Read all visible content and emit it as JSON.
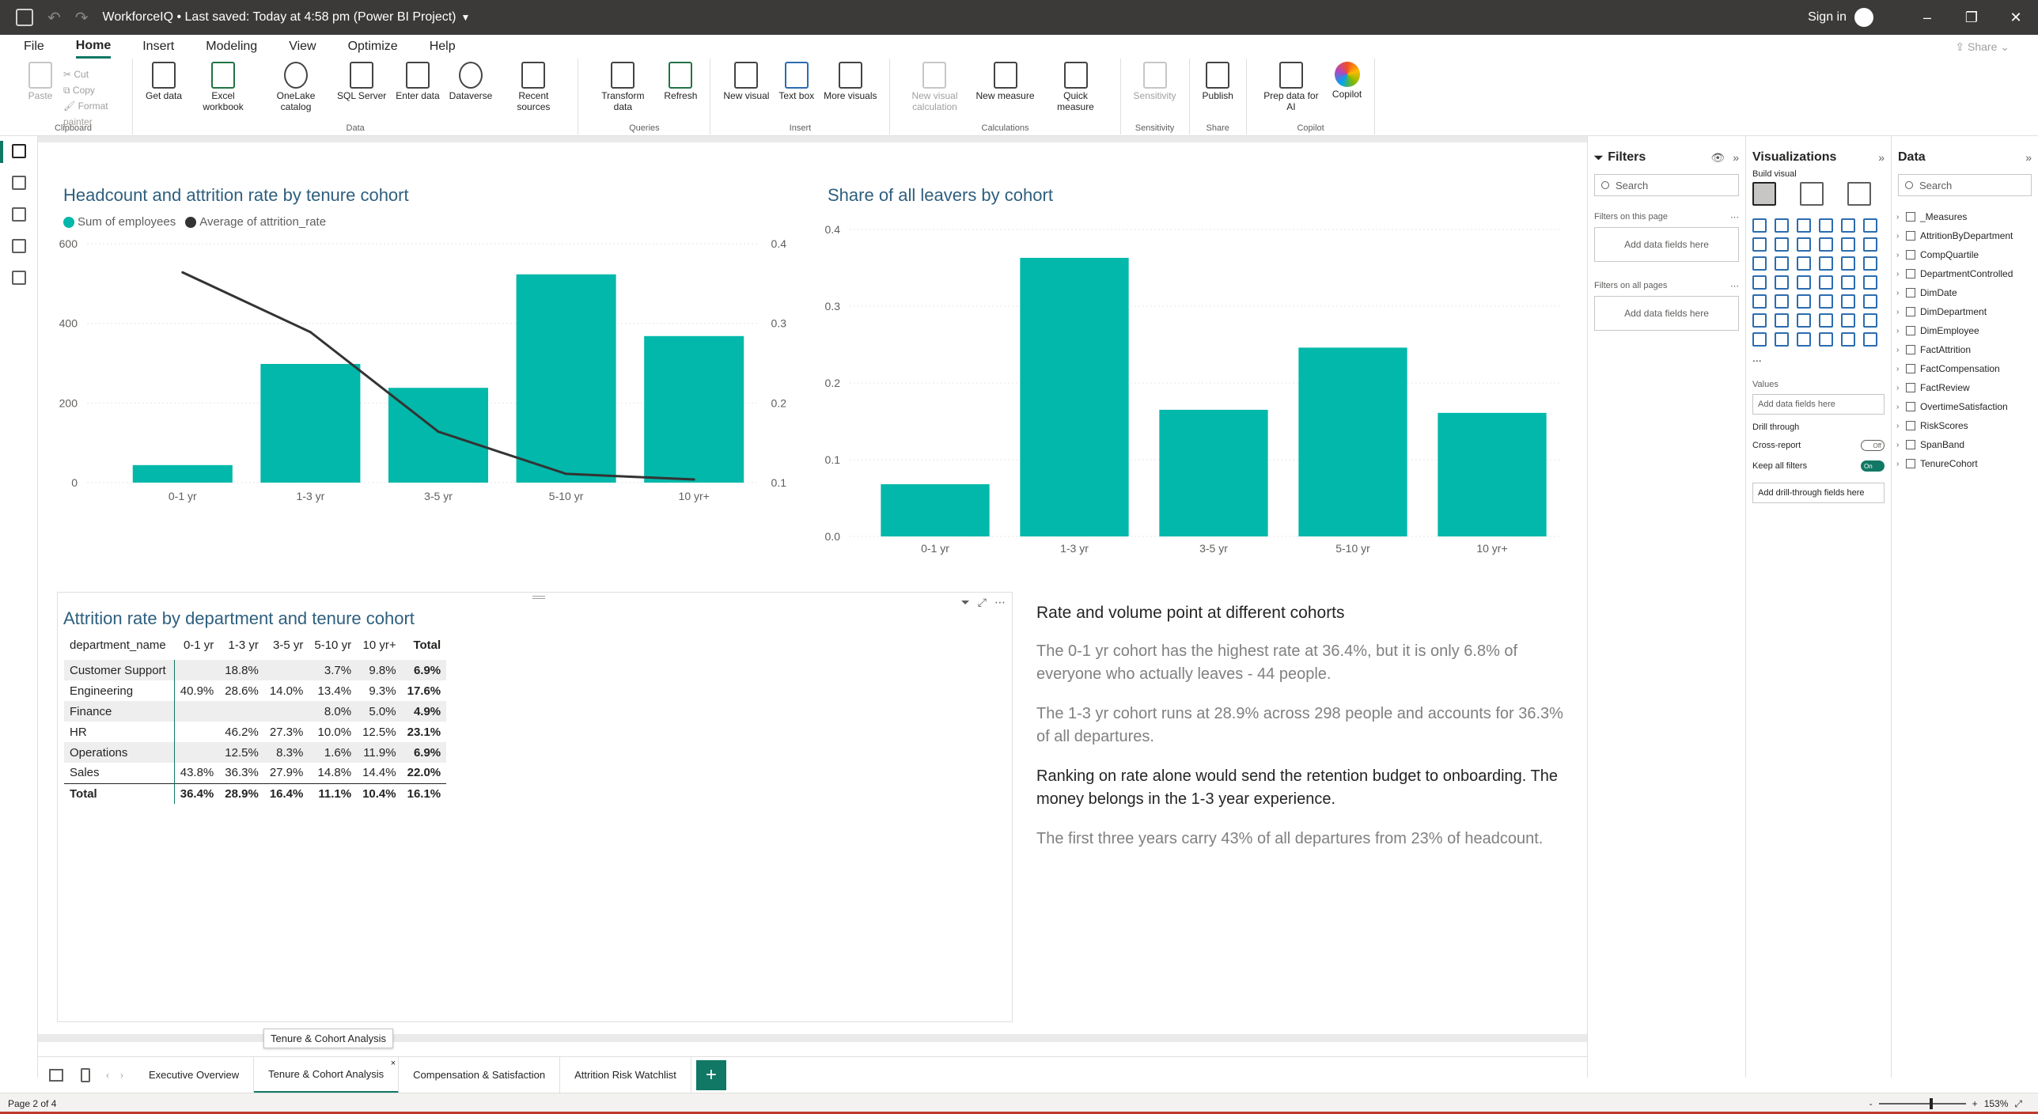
{
  "titlebar": {
    "title": "WorkforceIQ • Last saved: Today at 4:58 pm (Power BI Project)",
    "signin": "Sign in"
  },
  "menu": {
    "items": [
      "File",
      "Home",
      "Insert",
      "Modeling",
      "View",
      "Optimize",
      "Help"
    ],
    "active": "Home",
    "share": "Share"
  },
  "ribbon": {
    "clipboard": {
      "paste": "Paste",
      "cut": "Cut",
      "copy": "Copy",
      "format_painter": "Format painter",
      "group": "Clipboard"
    },
    "data": {
      "get_data": "Get data",
      "excel": "Excel workbook",
      "onelake": "OneLake catalog",
      "sql": "SQL Server",
      "enter": "Enter data",
      "dataverse": "Dataverse",
      "recent": "Recent sources",
      "group": "Data"
    },
    "queries": {
      "transform": "Transform data",
      "refresh": "Refresh",
      "group": "Queries"
    },
    "insert": {
      "new_visual": "New visual",
      "text_box": "Text box",
      "more_visuals": "More visuals",
      "group": "Insert"
    },
    "calculations": {
      "new_visual_calc": "New visual calculation",
      "new_measure": "New measure",
      "quick_measure": "Quick measure",
      "group": "Calculations"
    },
    "sensitivity": {
      "label": "Sensitivity",
      "group": "Sensitivity"
    },
    "share": {
      "publish": "Publish",
      "group": "Share"
    },
    "copilot": {
      "prep": "Prep data for AI",
      "copilot": "Copilot",
      "group": "Copilot"
    }
  },
  "combo_chart": {
    "title": "Headcount and attrition rate by tenure cohort",
    "legend": [
      "Sum of employees",
      "Average of attrition_rate"
    ],
    "colors": {
      "bar": "#01b8aa",
      "line": "#333333"
    }
  },
  "leavers_chart": {
    "title": "Share of all leavers by cohort",
    "color": "#01b8aa"
  },
  "chart_data": [
    {
      "type": "bar",
      "categories": [
        "0-1 yr",
        "1-3 yr",
        "3-5 yr",
        "5-10 yr",
        "10 yr+"
      ],
      "series": [
        {
          "name": "Sum of employees",
          "type": "bar",
          "axis": "left",
          "values": [
            44,
            298,
            238,
            523,
            368
          ]
        },
        {
          "name": "Average of attrition_rate",
          "type": "line",
          "axis": "right",
          "values": [
            0.364,
            0.289,
            0.164,
            0.111,
            0.104
          ]
        }
      ],
      "ylim_left": [
        0,
        600
      ],
      "yticks_left": [
        "0",
        "200",
        "400",
        "600"
      ],
      "ylim_right": [
        0.1,
        0.4
      ],
      "yticks_right": [
        "0.1",
        "0.2",
        "0.3",
        "0.4"
      ],
      "legend_position": "top-left",
      "grid": true
    },
    {
      "type": "bar",
      "categories": [
        "0-1 yr",
        "1-3 yr",
        "3-5 yr",
        "5-10 yr",
        "10 yr+"
      ],
      "values": [
        0.068,
        0.363,
        0.165,
        0.246,
        0.161
      ],
      "ylim": [
        0,
        0.4
      ],
      "yticks": [
        "0.0",
        "0.1",
        "0.2",
        "0.3",
        "0.4"
      ],
      "grid": true
    }
  ],
  "matrix": {
    "title": "Attrition rate by department and tenure cohort",
    "headers": [
      "department_name",
      "0-1 yr",
      "1-3 yr",
      "3-5 yr",
      "5-10 yr",
      "10 yr+",
      "Total"
    ],
    "rows": [
      [
        "Customer Support",
        "",
        "18.8%",
        "",
        "3.7%",
        "9.8%",
        "6.9%"
      ],
      [
        "Engineering",
        "40.9%",
        "28.6%",
        "14.0%",
        "13.4%",
        "9.3%",
        "17.6%"
      ],
      [
        "Finance",
        "",
        "",
        "",
        "8.0%",
        "5.0%",
        "4.9%"
      ],
      [
        "HR",
        "",
        "46.2%",
        "27.3%",
        "10.0%",
        "12.5%",
        "23.1%"
      ],
      [
        "Operations",
        "",
        "12.5%",
        "8.3%",
        "1.6%",
        "11.9%",
        "6.9%"
      ],
      [
        "Sales",
        "43.8%",
        "36.3%",
        "27.9%",
        "14.8%",
        "14.4%",
        "22.0%"
      ]
    ],
    "total": [
      "Total",
      "36.4%",
      "28.9%",
      "16.4%",
      "11.1%",
      "10.4%",
      "16.1%"
    ]
  },
  "textbox": {
    "heading": "Rate and volume point at different cohorts",
    "p1": "The 0-1 yr cohort has the highest rate at 36.4%, but it is only 6.8% of everyone who actually leaves - 44 people.",
    "p2": "The 1-3 yr cohort runs at 28.9% across 298 people and accounts for 36.3% of all departures.",
    "p3": "Ranking on rate alone would send the retention budget to onboarding. The money belongs in the 1-3 year experience.",
    "p4": "The first three years carry 43% of all departures from 23% of headcount."
  },
  "filters": {
    "title": "Filters",
    "search": "Search",
    "on_page": "Filters on this page",
    "on_all": "Filters on all pages",
    "add": "Add data fields here"
  },
  "viz": {
    "title": "Visualizations",
    "build": "Build visual",
    "values": "Values",
    "add": "Add data fields here",
    "drill": "Drill through",
    "cross": "Cross-report",
    "cross_state": "Off",
    "keep": "Keep all filters",
    "keep_state": "On",
    "drill_add": "Add drill-through fields here",
    "more": "..."
  },
  "datapane": {
    "title": "Data",
    "search": "Search",
    "tables": [
      "_Measures",
      "AttritionByDepartment",
      "CompQuartile",
      "DepartmentControlled",
      "DimDate",
      "DimDepartment",
      "DimEmployee",
      "FactAttrition",
      "FactCompensation",
      "FactReview",
      "OvertimeSatisfaction",
      "RiskScores",
      "SpanBand",
      "TenureCohort"
    ]
  },
  "tabs": {
    "items": [
      "Executive Overview",
      "Tenure & Cohort Analysis",
      "Compensation & Satisfaction",
      "Attrition Risk Watchlist"
    ],
    "active": 1,
    "tooltip": "Tenure & Cohort Analysis"
  },
  "status": {
    "page": "Page 2 of 4",
    "zoom": "153%"
  }
}
